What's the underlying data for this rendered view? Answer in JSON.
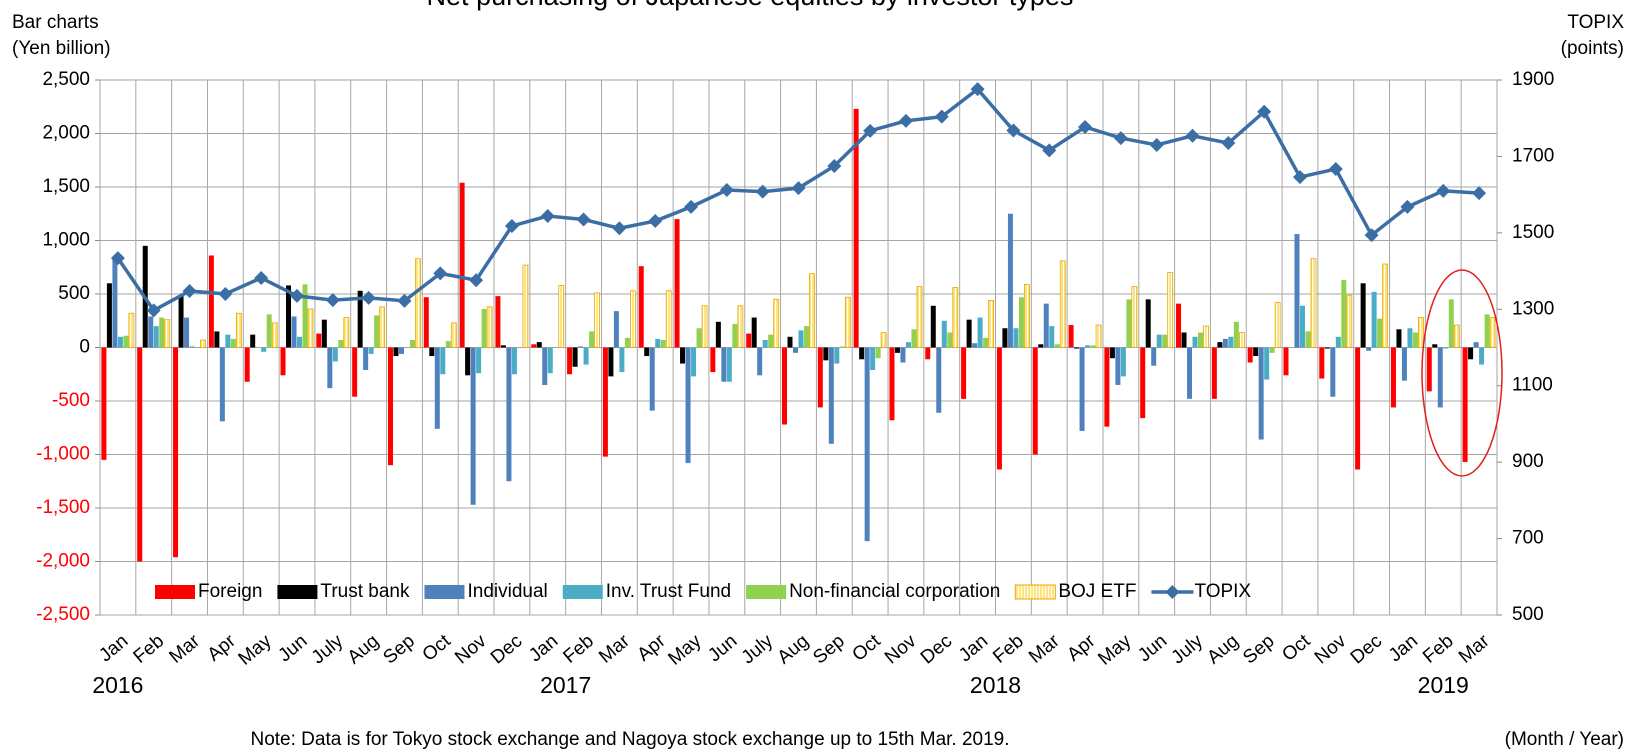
{
  "chart_data": {
    "type": "bar",
    "title": "Net purchasing of Japanese equities by investor types",
    "y_label_lines": [
      "Bar charts",
      "(Yen billion)"
    ],
    "y2_label_lines": [
      "TOPIX",
      "(points)"
    ],
    "x_label": "(Month / Year)",
    "note": "Note: Data is for Tokyo stock exchange and Nagoya stock exchange up to 15th Mar. 2019.",
    "categories": [
      "Jan",
      "Feb",
      "Mar",
      "Apr",
      "May",
      "Jun",
      "July",
      "Aug",
      "Sep",
      "Oct",
      "Nov",
      "Dec",
      "Jan",
      "Feb",
      "Mar",
      "Apr",
      "May",
      "Jun",
      "July",
      "Aug",
      "Sep",
      "Oct",
      "Nov",
      "Dec",
      "Jan",
      "Feb",
      "Mar",
      "Apr",
      "May",
      "Jun",
      "July",
      "Aug",
      "Sep",
      "Oct",
      "Nov",
      "Dec",
      "Jan",
      "Feb",
      "Mar"
    ],
    "years": [
      "2016",
      "2017",
      "2018",
      "2019"
    ],
    "ylim": [
      -2500,
      2500
    ],
    "yticks": [
      {
        "value": -2500,
        "label": "-2,500"
      },
      {
        "value": -2000,
        "label": "-2,000"
      },
      {
        "value": -1500,
        "label": "-1,500"
      },
      {
        "value": -1000,
        "label": "-1,000"
      },
      -500,
      0,
      500,
      {
        "value": 1000,
        "label": "1,000"
      },
      {
        "value": 1500,
        "label": "1,500"
      },
      {
        "value": 2000,
        "label": "2,000"
      },
      {
        "value": 2500,
        "label": "2,500"
      }
    ],
    "y2lim": [
      500,
      1900
    ],
    "y2ticks": [
      500,
      700,
      900,
      1100,
      1300,
      1500,
      1700,
      1900
    ],
    "grid": true,
    "legend": "bottom",
    "series": [
      {
        "name": "Foreign",
        "color": "#ff0000",
        "values": [
          -1050,
          -2000,
          -1960,
          860,
          -320,
          -260,
          130,
          -460,
          -1100,
          470,
          1540,
          480,
          30,
          -250,
          -1020,
          760,
          1200,
          -230,
          130,
          -720,
          -560,
          2230,
          -680,
          -110,
          -480,
          -1140,
          -1000,
          210,
          -740,
          -660,
          410,
          -480,
          -140,
          -260,
          -290,
          -1140,
          -560,
          -410,
          -1070
        ]
      },
      {
        "name": "Trust bank",
        "color": "#000000",
        "values": [
          600,
          950,
          480,
          150,
          120,
          580,
          260,
          530,
          -80,
          -80,
          -260,
          20,
          50,
          -180,
          -270,
          -80,
          -150,
          240,
          280,
          100,
          -120,
          -110,
          -50,
          390,
          260,
          180,
          30,
          -10,
          -100,
          450,
          140,
          50,
          -80,
          0,
          -10,
          600,
          170,
          30,
          -110
        ]
      },
      {
        "name": "Individual",
        "color": "#4f81bd",
        "values": [
          830,
          290,
          280,
          -690,
          0,
          290,
          -380,
          -210,
          -60,
          -760,
          -1470,
          -1250,
          -350,
          10,
          340,
          -590,
          -1080,
          -320,
          -260,
          -50,
          -900,
          -1810,
          -140,
          -610,
          40,
          1250,
          410,
          -780,
          -350,
          -170,
          -480,
          80,
          -860,
          1060,
          -460,
          -30,
          -310,
          -560,
          50
        ]
      },
      {
        "name": "Inv. Trust Fund",
        "color": "#4bacc6",
        "values": [
          100,
          200,
          10,
          120,
          -40,
          100,
          -130,
          -60,
          0,
          -250,
          -240,
          -250,
          -240,
          -160,
          -230,
          80,
          -270,
          -320,
          70,
          160,
          -150,
          -210,
          50,
          250,
          280,
          180,
          200,
          20,
          -270,
          120,
          100,
          100,
          -300,
          390,
          100,
          520,
          180,
          -10,
          -160
        ]
      },
      {
        "name": "Non-financial corporation",
        "color": "#92d050",
        "values": [
          110,
          280,
          0,
          80,
          310,
          590,
          70,
          300,
          70,
          60,
          360,
          0,
          0,
          150,
          90,
          70,
          180,
          220,
          120,
          200,
          10,
          -100,
          170,
          140,
          90,
          470,
          30,
          20,
          450,
          120,
          140,
          240,
          -50,
          150,
          630,
          270,
          140,
          450,
          310
        ]
      },
      {
        "name": "BOJ ETF",
        "color": "#ffe47a",
        "border": "#e6a800",
        "values": [
          320,
          260,
          70,
          320,
          230,
          360,
          280,
          380,
          830,
          230,
          380,
          770,
          580,
          510,
          530,
          530,
          390,
          390,
          450,
          690,
          470,
          140,
          570,
          560,
          440,
          590,
          810,
          210,
          570,
          700,
          200,
          140,
          420,
          830,
          490,
          780,
          280,
          210,
          280
        ]
      },
      {
        "name": "TOPIX",
        "type": "line",
        "axis": "y2",
        "color": "#3c6ea6",
        "values": [
          1434,
          1297,
          1348,
          1340,
          1382,
          1335,
          1324,
          1330,
          1322,
          1394,
          1376,
          1518,
          1544,
          1535,
          1512,
          1531,
          1568,
          1612,
          1608,
          1617,
          1675,
          1767,
          1793,
          1804,
          1876,
          1768,
          1716,
          1777,
          1748,
          1730,
          1754,
          1735,
          1817,
          1646,
          1667,
          1494,
          1568,
          1610,
          1604
        ]
      }
    ]
  }
}
